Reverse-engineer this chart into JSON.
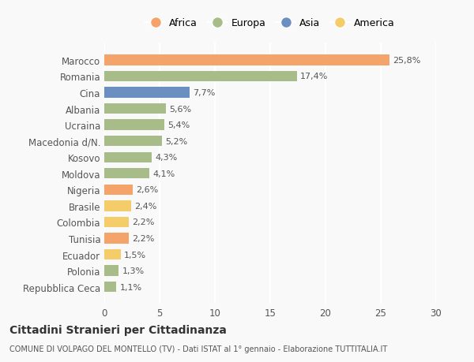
{
  "categories": [
    "Marocco",
    "Romania",
    "Cina",
    "Albania",
    "Ucraina",
    "Macedonia d/N.",
    "Kosovo",
    "Moldova",
    "Nigeria",
    "Brasile",
    "Colombia",
    "Tunisia",
    "Ecuador",
    "Polonia",
    "Repubblica Ceca"
  ],
  "values": [
    25.8,
    17.4,
    7.7,
    5.6,
    5.4,
    5.2,
    4.3,
    4.1,
    2.6,
    2.4,
    2.2,
    2.2,
    1.5,
    1.3,
    1.1
  ],
  "labels": [
    "25,8%",
    "17,4%",
    "7,7%",
    "5,6%",
    "5,4%",
    "5,2%",
    "4,3%",
    "4,1%",
    "2,6%",
    "2,4%",
    "2,2%",
    "2,2%",
    "1,5%",
    "1,3%",
    "1,1%"
  ],
  "continents": [
    "Africa",
    "Europa",
    "Asia",
    "Europa",
    "Europa",
    "Europa",
    "Europa",
    "Europa",
    "Africa",
    "America",
    "America",
    "Africa",
    "America",
    "Europa",
    "Europa"
  ],
  "colors": {
    "Africa": "#F4A46A",
    "Europa": "#A8BC8A",
    "Asia": "#6A8FC0",
    "America": "#F5CC6A"
  },
  "legend_order": [
    "Africa",
    "Europa",
    "Asia",
    "America"
  ],
  "title": "Cittadini Stranieri per Cittadinanza",
  "subtitle": "COMUNE DI VOLPAGO DEL MONTELLO (TV) - Dati ISTAT al 1° gennaio - Elaborazione TUTTITALIA.IT",
  "xlim": [
    0,
    30
  ],
  "xticks": [
    0,
    5,
    10,
    15,
    20,
    25,
    30
  ],
  "background_color": "#f9f9f9",
  "grid_color": "#ffffff",
  "bar_height": 0.65
}
